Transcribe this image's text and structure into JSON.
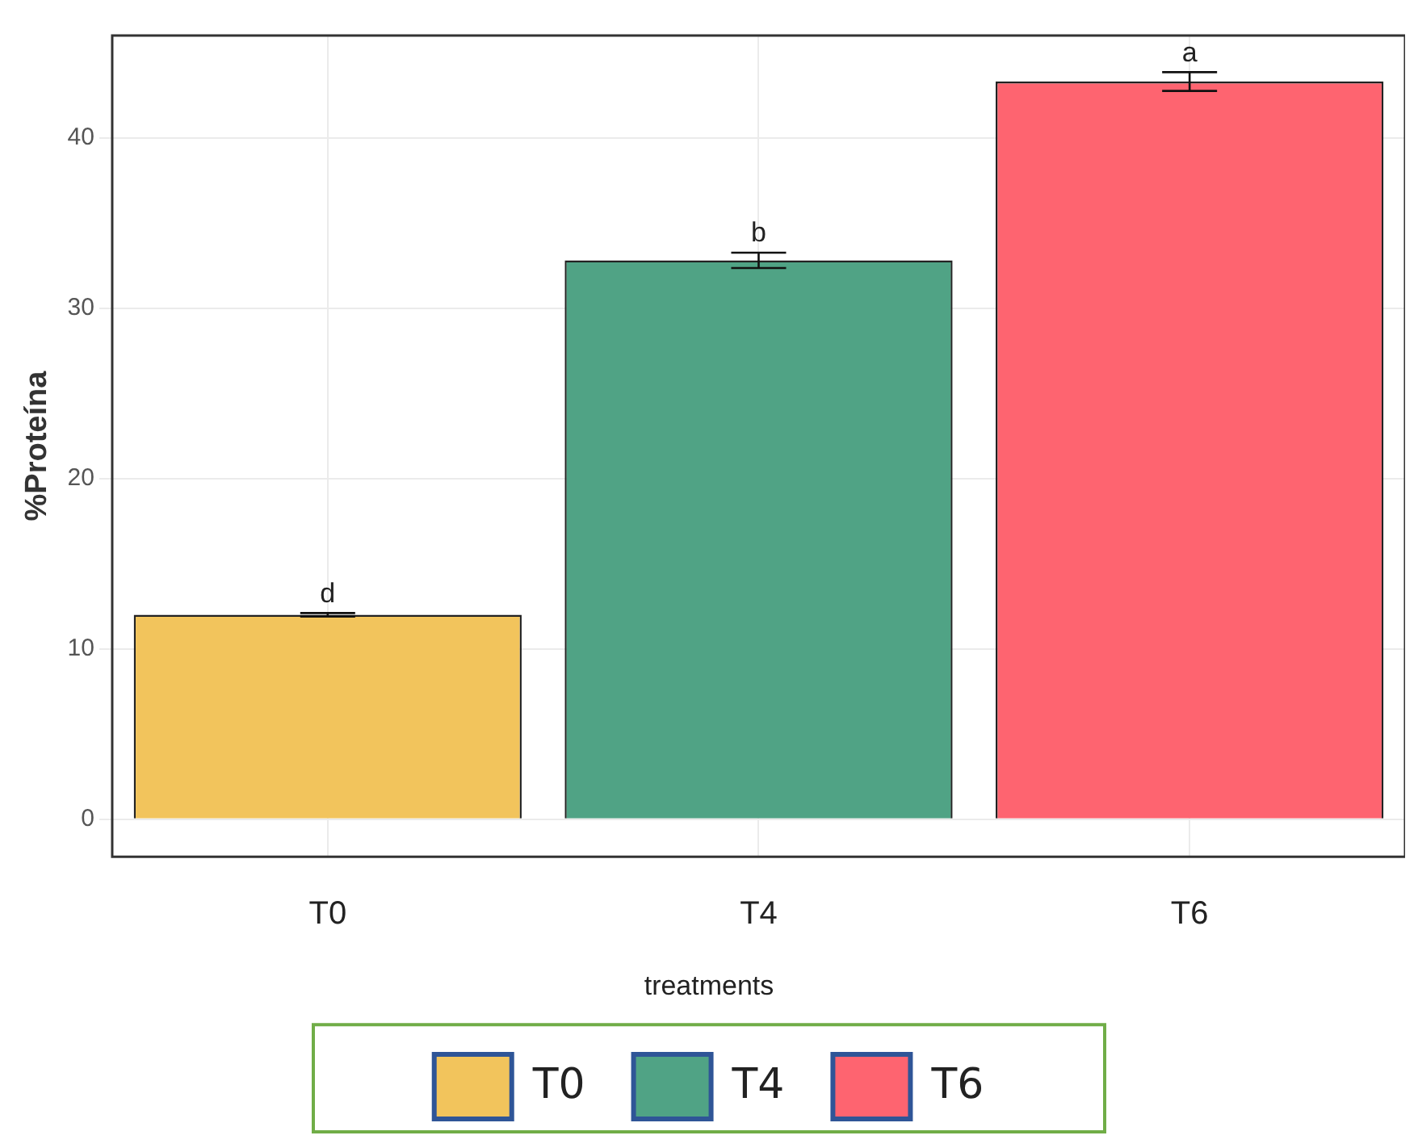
{
  "chart_data": {
    "type": "bar",
    "ylabel": "%Proteína",
    "legend_title": "treatments",
    "legend": "bottom",
    "grid": true,
    "categories": [
      "T0",
      "T4",
      "T6"
    ],
    "series": [
      {
        "name": "T0",
        "color": "#f2c45c",
        "values": [
          12.0,
          null,
          null
        ],
        "errors": [
          0.1,
          null,
          null
        ]
      },
      {
        "name": "T4",
        "color": "#50a385",
        "values": [
          null,
          32.8,
          null
        ],
        "errors": [
          null,
          0.45,
          null
        ]
      },
      {
        "name": "T6",
        "color": "#fe6470",
        "values": [
          null,
          null,
          43.3
        ],
        "errors": [
          null,
          null,
          0.55
        ]
      }
    ],
    "ylim": [
      -2.2,
      46
    ],
    "yticks": [
      0,
      10,
      20,
      30,
      40
    ],
    "annotations": [
      {
        "text": "d",
        "x": "T0",
        "y": 12.1
      },
      {
        "text": "b",
        "x": "T4",
        "y": 33.25
      },
      {
        "text": "a",
        "x": "T6",
        "y": 43.85
      }
    ]
  }
}
